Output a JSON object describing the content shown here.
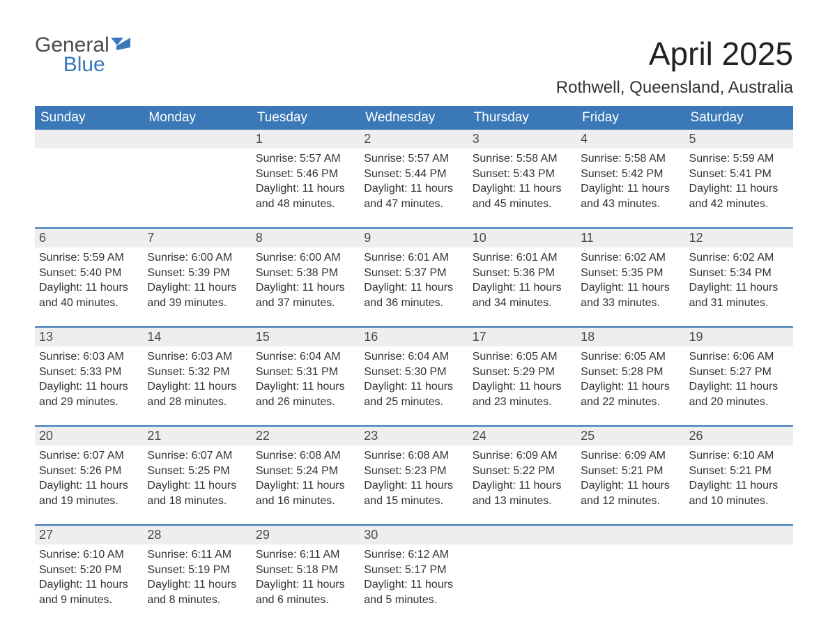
{
  "logo": {
    "word1": "General",
    "word2": "Blue"
  },
  "title": "April 2025",
  "location": "Rothwell, Queensland, Australia",
  "colors": {
    "header_bg": "#3a78b8",
    "header_text": "#ffffff",
    "daynum_bg": "#eeeeee",
    "week_border": "#3a78b8",
    "body_text": "#333333",
    "logo_gray": "#4a4a4a",
    "logo_blue": "#3a78b8"
  },
  "daysOfWeek": [
    "Sunday",
    "Monday",
    "Tuesday",
    "Wednesday",
    "Thursday",
    "Friday",
    "Saturday"
  ],
  "weeks": [
    [
      {
        "num": "",
        "sunrise": "",
        "sunset": "",
        "daylight": ""
      },
      {
        "num": "",
        "sunrise": "",
        "sunset": "",
        "daylight": ""
      },
      {
        "num": "1",
        "sunrise": "Sunrise: 5:57 AM",
        "sunset": "Sunset: 5:46 PM",
        "daylight": "Daylight: 11 hours and 48 minutes."
      },
      {
        "num": "2",
        "sunrise": "Sunrise: 5:57 AM",
        "sunset": "Sunset: 5:44 PM",
        "daylight": "Daylight: 11 hours and 47 minutes."
      },
      {
        "num": "3",
        "sunrise": "Sunrise: 5:58 AM",
        "sunset": "Sunset: 5:43 PM",
        "daylight": "Daylight: 11 hours and 45 minutes."
      },
      {
        "num": "4",
        "sunrise": "Sunrise: 5:58 AM",
        "sunset": "Sunset: 5:42 PM",
        "daylight": "Daylight: 11 hours and 43 minutes."
      },
      {
        "num": "5",
        "sunrise": "Sunrise: 5:59 AM",
        "sunset": "Sunset: 5:41 PM",
        "daylight": "Daylight: 11 hours and 42 minutes."
      }
    ],
    [
      {
        "num": "6",
        "sunrise": "Sunrise: 5:59 AM",
        "sunset": "Sunset: 5:40 PM",
        "daylight": "Daylight: 11 hours and 40 minutes."
      },
      {
        "num": "7",
        "sunrise": "Sunrise: 6:00 AM",
        "sunset": "Sunset: 5:39 PM",
        "daylight": "Daylight: 11 hours and 39 minutes."
      },
      {
        "num": "8",
        "sunrise": "Sunrise: 6:00 AM",
        "sunset": "Sunset: 5:38 PM",
        "daylight": "Daylight: 11 hours and 37 minutes."
      },
      {
        "num": "9",
        "sunrise": "Sunrise: 6:01 AM",
        "sunset": "Sunset: 5:37 PM",
        "daylight": "Daylight: 11 hours and 36 minutes."
      },
      {
        "num": "10",
        "sunrise": "Sunrise: 6:01 AM",
        "sunset": "Sunset: 5:36 PM",
        "daylight": "Daylight: 11 hours and 34 minutes."
      },
      {
        "num": "11",
        "sunrise": "Sunrise: 6:02 AM",
        "sunset": "Sunset: 5:35 PM",
        "daylight": "Daylight: 11 hours and 33 minutes."
      },
      {
        "num": "12",
        "sunrise": "Sunrise: 6:02 AM",
        "sunset": "Sunset: 5:34 PM",
        "daylight": "Daylight: 11 hours and 31 minutes."
      }
    ],
    [
      {
        "num": "13",
        "sunrise": "Sunrise: 6:03 AM",
        "sunset": "Sunset: 5:33 PM",
        "daylight": "Daylight: 11 hours and 29 minutes."
      },
      {
        "num": "14",
        "sunrise": "Sunrise: 6:03 AM",
        "sunset": "Sunset: 5:32 PM",
        "daylight": "Daylight: 11 hours and 28 minutes."
      },
      {
        "num": "15",
        "sunrise": "Sunrise: 6:04 AM",
        "sunset": "Sunset: 5:31 PM",
        "daylight": "Daylight: 11 hours and 26 minutes."
      },
      {
        "num": "16",
        "sunrise": "Sunrise: 6:04 AM",
        "sunset": "Sunset: 5:30 PM",
        "daylight": "Daylight: 11 hours and 25 minutes."
      },
      {
        "num": "17",
        "sunrise": "Sunrise: 6:05 AM",
        "sunset": "Sunset: 5:29 PM",
        "daylight": "Daylight: 11 hours and 23 minutes."
      },
      {
        "num": "18",
        "sunrise": "Sunrise: 6:05 AM",
        "sunset": "Sunset: 5:28 PM",
        "daylight": "Daylight: 11 hours and 22 minutes."
      },
      {
        "num": "19",
        "sunrise": "Sunrise: 6:06 AM",
        "sunset": "Sunset: 5:27 PM",
        "daylight": "Daylight: 11 hours and 20 minutes."
      }
    ],
    [
      {
        "num": "20",
        "sunrise": "Sunrise: 6:07 AM",
        "sunset": "Sunset: 5:26 PM",
        "daylight": "Daylight: 11 hours and 19 minutes."
      },
      {
        "num": "21",
        "sunrise": "Sunrise: 6:07 AM",
        "sunset": "Sunset: 5:25 PM",
        "daylight": "Daylight: 11 hours and 18 minutes."
      },
      {
        "num": "22",
        "sunrise": "Sunrise: 6:08 AM",
        "sunset": "Sunset: 5:24 PM",
        "daylight": "Daylight: 11 hours and 16 minutes."
      },
      {
        "num": "23",
        "sunrise": "Sunrise: 6:08 AM",
        "sunset": "Sunset: 5:23 PM",
        "daylight": "Daylight: 11 hours and 15 minutes."
      },
      {
        "num": "24",
        "sunrise": "Sunrise: 6:09 AM",
        "sunset": "Sunset: 5:22 PM",
        "daylight": "Daylight: 11 hours and 13 minutes."
      },
      {
        "num": "25",
        "sunrise": "Sunrise: 6:09 AM",
        "sunset": "Sunset: 5:21 PM",
        "daylight": "Daylight: 11 hours and 12 minutes."
      },
      {
        "num": "26",
        "sunrise": "Sunrise: 6:10 AM",
        "sunset": "Sunset: 5:21 PM",
        "daylight": "Daylight: 11 hours and 10 minutes."
      }
    ],
    [
      {
        "num": "27",
        "sunrise": "Sunrise: 6:10 AM",
        "sunset": "Sunset: 5:20 PM",
        "daylight": "Daylight: 11 hours and 9 minutes."
      },
      {
        "num": "28",
        "sunrise": "Sunrise: 6:11 AM",
        "sunset": "Sunset: 5:19 PM",
        "daylight": "Daylight: 11 hours and 8 minutes."
      },
      {
        "num": "29",
        "sunrise": "Sunrise: 6:11 AM",
        "sunset": "Sunset: 5:18 PM",
        "daylight": "Daylight: 11 hours and 6 minutes."
      },
      {
        "num": "30",
        "sunrise": "Sunrise: 6:12 AM",
        "sunset": "Sunset: 5:17 PM",
        "daylight": "Daylight: 11 hours and 5 minutes."
      },
      {
        "num": "",
        "sunrise": "",
        "sunset": "",
        "daylight": ""
      },
      {
        "num": "",
        "sunrise": "",
        "sunset": "",
        "daylight": ""
      },
      {
        "num": "",
        "sunrise": "",
        "sunset": "",
        "daylight": ""
      }
    ]
  ]
}
